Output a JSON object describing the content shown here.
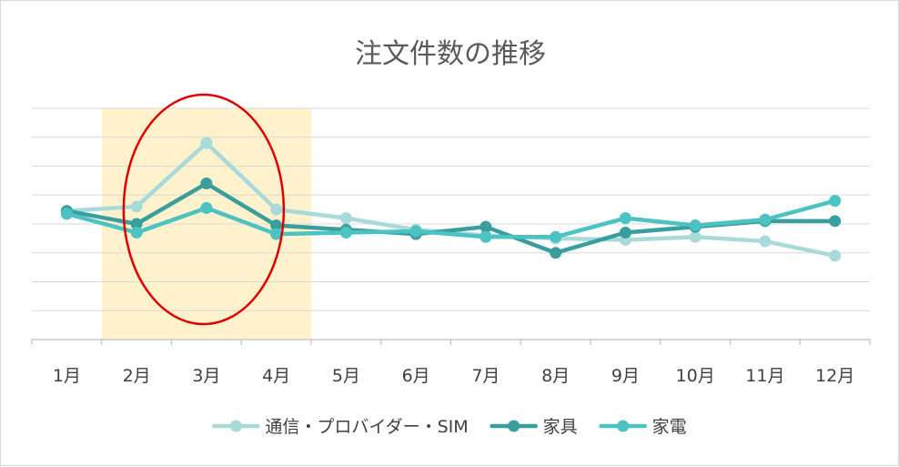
{
  "chart_data": {
    "type": "line",
    "title": "注文件数の推移",
    "categories": [
      "1月",
      "2月",
      "3月",
      "4月",
      "5月",
      "6月",
      "7月",
      "8月",
      "9月",
      "10月",
      "11月",
      "12月"
    ],
    "ylim": [
      0,
      8
    ],
    "grid": true,
    "legend": "bottom",
    "series": [
      {
        "name": "通信・プロバイダー・SIM",
        "color": "#a8dada",
        "values": [
          4.45,
          4.6,
          6.8,
          4.5,
          4.2,
          3.8,
          3.6,
          3.5,
          3.45,
          3.55,
          3.4,
          2.9
        ]
      },
      {
        "name": "家具",
        "color": "#3a9e9e",
        "values": [
          4.45,
          4.0,
          5.4,
          3.95,
          3.8,
          3.65,
          3.9,
          3.0,
          3.7,
          3.9,
          4.1,
          4.1
        ]
      },
      {
        "name": "家電",
        "color": "#4cc2c2",
        "values": [
          4.35,
          3.7,
          4.55,
          3.65,
          3.7,
          3.75,
          3.55,
          3.55,
          4.2,
          3.95,
          4.15,
          4.8
        ]
      }
    ],
    "annotations": [
      {
        "type": "highlight-band",
        "from": "2月",
        "to": "4月",
        "color": "#fff2cc"
      },
      {
        "type": "ellipse",
        "around": "3月",
        "color": "#e00000"
      }
    ]
  }
}
